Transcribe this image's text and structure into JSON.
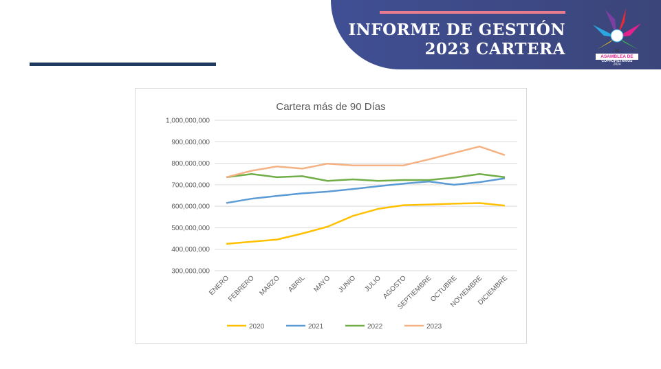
{
  "header": {
    "title_line1": "INFORME DE GESTIÓN",
    "title_line2": "2023 CARTERA",
    "logo_text": "-39- ASAMBLEA DE COPROPIETARIOS 2024"
  },
  "colors": {
    "banner": "#3f4b8a",
    "accent": "#e97b8e",
    "leftbar": "#1e3a5f"
  },
  "chart_data": {
    "type": "line",
    "title": "Cartera más de 90 Días",
    "xlabel": "",
    "ylabel": "",
    "categories": [
      "ENERO",
      "FEBRERO",
      "MARZO",
      "ABRIL",
      "MAYO",
      "JUNIO",
      "JULIO",
      "AGOSTO",
      "SEPTIEMBRE",
      "OCTUBRE",
      "NOVIEMBRE",
      "DICIEMBRE"
    ],
    "ylim": [
      300000000,
      1000000000
    ],
    "yticks": [
      300000000,
      400000000,
      500000000,
      600000000,
      700000000,
      800000000,
      900000000,
      1000000000
    ],
    "ytick_labels": [
      "300,000,000",
      "400,000,000",
      "500,000,000",
      "600,000,000",
      "700,000,000",
      "800,000,000",
      "900,000,000",
      "1,000,000,000"
    ],
    "grid": true,
    "legend": "bottom",
    "series": [
      {
        "name": "2020",
        "color": "#ffc000",
        "values": [
          425000000,
          435000000,
          445000000,
          473000000,
          505000000,
          555000000,
          588000000,
          605000000,
          608000000,
          612000000,
          615000000,
          603000000
        ]
      },
      {
        "name": "2021",
        "color": "#5b9bd5",
        "values": [
          615000000,
          635000000,
          648000000,
          660000000,
          668000000,
          680000000,
          693000000,
          705000000,
          715000000,
          700000000,
          712000000,
          730000000
        ]
      },
      {
        "name": "2022",
        "color": "#70ad47",
        "values": [
          735000000,
          750000000,
          735000000,
          740000000,
          718000000,
          725000000,
          718000000,
          722000000,
          722000000,
          733000000,
          750000000,
          735000000
        ]
      },
      {
        "name": "2023",
        "color": "#f4b183",
        "values": [
          735000000,
          765000000,
          785000000,
          775000000,
          798000000,
          790000000,
          790000000,
          790000000,
          818000000,
          848000000,
          878000000,
          838000000
        ]
      }
    ]
  }
}
